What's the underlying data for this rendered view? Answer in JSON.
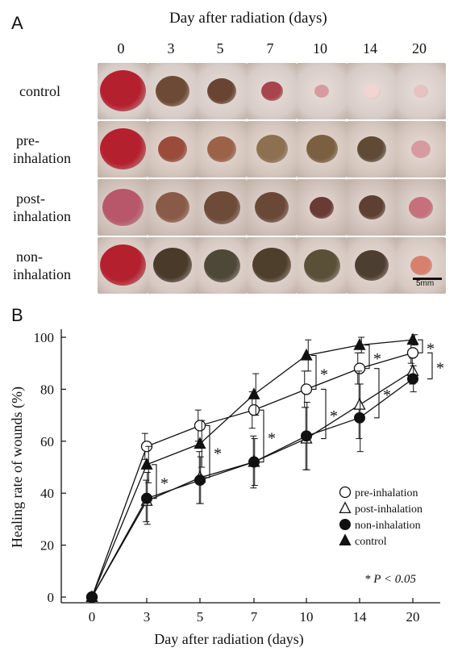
{
  "panel_a": {
    "letter": "A",
    "title": "Day after radiation (days)",
    "days": [
      "0",
      "3",
      "5",
      "7",
      "10",
      "14",
      "20"
    ],
    "rows": [
      {
        "label_lines": [
          "control"
        ]
      },
      {
        "label_lines": [
          "pre-",
          "inhalation"
        ]
      },
      {
        "label_lines": [
          "post-",
          "inhalation"
        ]
      },
      {
        "label_lines": [
          "non-",
          "inhalation"
        ]
      }
    ],
    "scale_bar": "5mm",
    "colors": {
      "skin": "#d9cdc6",
      "fresh_wound": "#b5202e",
      "scab_dark": "#4a3a2a",
      "healed": "#e9c7c4"
    }
  },
  "panel_b": {
    "letter": "B",
    "significance_note": "P < 0.05",
    "chart_data": {
      "type": "line",
      "xlabel": "Day after radiation (days)",
      "ylabel": "Healing rate of wounds (%)",
      "x_categories": [
        "0",
        "3",
        "5",
        "7",
        "10",
        "14",
        "20"
      ],
      "ylim": [
        0,
        100
      ],
      "yticks": [
        "0",
        "20",
        "40",
        "60",
        "80",
        "100"
      ],
      "legend_position": "lower-right",
      "series": [
        {
          "name": "pre-inhalation",
          "marker": "open-circle",
          "values": [
            0,
            58,
            66,
            72,
            80,
            88,
            94
          ],
          "errors": [
            0,
            5,
            6,
            7,
            7,
            6,
            4
          ]
        },
        {
          "name": "post-inhalation",
          "marker": "open-triangle",
          "values": [
            0,
            37,
            46,
            52,
            61,
            74,
            87
          ],
          "errors": [
            0,
            8,
            10,
            10,
            12,
            13,
            5
          ]
        },
        {
          "name": "non-inhalation",
          "marker": "filled-circle",
          "values": [
            0,
            38,
            45,
            52,
            62,
            69,
            84
          ],
          "errors": [
            0,
            10,
            9,
            9,
            13,
            13,
            5
          ]
        },
        {
          "name": "control",
          "marker": "filled-triangle",
          "values": [
            0,
            51,
            59,
            78,
            93,
            97,
            99
          ],
          "errors": [
            0,
            7,
            9,
            8,
            6,
            3,
            2
          ]
        }
      ],
      "significance_markers": [
        {
          "x_index": 1,
          "y_from": 38,
          "y_to": 51
        },
        {
          "x_index": 2,
          "y_from": 46,
          "y_to": 66
        },
        {
          "x_index": 3,
          "y_from": 52,
          "y_to": 72
        },
        {
          "x_index": 4,
          "y_from": 80,
          "y_to": 93
        },
        {
          "x_index": 4,
          "y_from": 61,
          "y_to": 80
        },
        {
          "x_index": 5,
          "y_from": 88,
          "y_to": 97
        },
        {
          "x_index": 5,
          "y_from": 69,
          "y_to": 88
        },
        {
          "x_index": 6,
          "y_from": 94,
          "y_to": 99
        },
        {
          "x_index": 6,
          "y_from": 84,
          "y_to": 94
        }
      ]
    }
  }
}
